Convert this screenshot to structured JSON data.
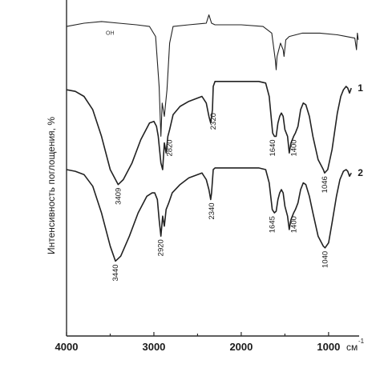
{
  "chart_data": {
    "type": "line",
    "xlabel": "см-1",
    "ylabel": "Интенсивность поглощения, %",
    "xlim": [
      4000,
      650
    ],
    "x_reversed": true,
    "xticks": [
      4000,
      3000,
      2000,
      1000
    ],
    "xtick_labels": [
      "4000",
      "3000",
      "2000",
      "1000"
    ],
    "xunit_main": "см",
    "xunit_sup": "-1",
    "grid": false,
    "series": [
      {
        "id": "ref",
        "label": "OH",
        "peaks": [
          2920,
          2850,
          1600,
          1510
        ],
        "points": [
          [
            4000,
            0.93
          ],
          [
            3800,
            0.94
          ],
          [
            3600,
            0.945
          ],
          [
            3400,
            0.94
          ],
          [
            3200,
            0.935
          ],
          [
            3050,
            0.93
          ],
          [
            2980,
            0.9
          ],
          [
            2940,
            0.75
          ],
          [
            2920,
            0.6
          ],
          [
            2905,
            0.7
          ],
          [
            2880,
            0.66
          ],
          [
            2850,
            0.74
          ],
          [
            2820,
            0.88
          ],
          [
            2780,
            0.93
          ],
          [
            2600,
            0.935
          ],
          [
            2400,
            0.94
          ],
          [
            2370,
            0.965
          ],
          [
            2340,
            0.94
          ],
          [
            2300,
            0.935
          ],
          [
            2000,
            0.935
          ],
          [
            1750,
            0.93
          ],
          [
            1650,
            0.91
          ],
          [
            1610,
            0.83
          ],
          [
            1600,
            0.8
          ],
          [
            1590,
            0.84
          ],
          [
            1550,
            0.88
          ],
          [
            1520,
            0.86
          ],
          [
            1510,
            0.84
          ],
          [
            1490,
            0.89
          ],
          [
            1450,
            0.9
          ],
          [
            1300,
            0.91
          ],
          [
            1100,
            0.91
          ],
          [
            900,
            0.905
          ],
          [
            800,
            0.9
          ],
          [
            700,
            0.895
          ],
          [
            680,
            0.86
          ],
          [
            670,
            0.91
          ],
          [
            660,
            0.89
          ]
        ]
      },
      {
        "id": "s1",
        "label": "1",
        "peaks": [
          3409,
          2820,
          2320,
          1640,
          1400,
          1046
        ],
        "peak_labels": [
          "3409",
          "2820",
          "2320",
          "1640",
          "1400",
          "1046"
        ],
        "points": [
          [
            4000,
            0.74
          ],
          [
            3900,
            0.735
          ],
          [
            3800,
            0.72
          ],
          [
            3700,
            0.68
          ],
          [
            3600,
            0.6
          ],
          [
            3500,
            0.5
          ],
          [
            3409,
            0.455
          ],
          [
            3350,
            0.47
          ],
          [
            3250,
            0.52
          ],
          [
            3150,
            0.59
          ],
          [
            3050,
            0.64
          ],
          [
            3000,
            0.645
          ],
          [
            2970,
            0.63
          ],
          [
            2950,
            0.6
          ],
          [
            2920,
            0.52
          ],
          [
            2900,
            0.5
          ],
          [
            2880,
            0.58
          ],
          [
            2860,
            0.55
          ],
          [
            2840,
            0.6
          ],
          [
            2820,
            0.62
          ],
          [
            2780,
            0.665
          ],
          [
            2700,
            0.69
          ],
          [
            2600,
            0.705
          ],
          [
            2450,
            0.72
          ],
          [
            2400,
            0.7
          ],
          [
            2370,
            0.66
          ],
          [
            2350,
            0.64
          ],
          [
            2330,
            0.68
          ],
          [
            2320,
            0.75
          ],
          [
            2300,
            0.765
          ],
          [
            2200,
            0.765
          ],
          [
            2000,
            0.765
          ],
          [
            1800,
            0.765
          ],
          [
            1720,
            0.76
          ],
          [
            1680,
            0.72
          ],
          [
            1640,
            0.61
          ],
          [
            1620,
            0.6
          ],
          [
            1600,
            0.6
          ],
          [
            1580,
            0.64
          ],
          [
            1560,
            0.66
          ],
          [
            1540,
            0.67
          ],
          [
            1520,
            0.66
          ],
          [
            1500,
            0.62
          ],
          [
            1470,
            0.6
          ],
          [
            1450,
            0.55
          ],
          [
            1430,
            0.58
          ],
          [
            1400,
            0.6
          ],
          [
            1380,
            0.61
          ],
          [
            1350,
            0.63
          ],
          [
            1320,
            0.68
          ],
          [
            1290,
            0.7
          ],
          [
            1260,
            0.695
          ],
          [
            1220,
            0.66
          ],
          [
            1180,
            0.6
          ],
          [
            1120,
            0.53
          ],
          [
            1060,
            0.5
          ],
          [
            1046,
            0.49
          ],
          [
            1010,
            0.5
          ],
          [
            960,
            0.56
          ],
          [
            900,
            0.67
          ],
          [
            860,
            0.72
          ],
          [
            830,
            0.74
          ],
          [
            800,
            0.75
          ],
          [
            780,
            0.745
          ],
          [
            760,
            0.73
          ],
          [
            740,
            0.745
          ]
        ]
      },
      {
        "id": "s2",
        "label": "2",
        "peaks": [
          3440,
          2920,
          2340,
          1645,
          1400,
          1040
        ],
        "peak_labels": [
          "3440",
          "2920",
          "2340",
          "1645",
          "1400",
          "1040"
        ],
        "points": [
          [
            4000,
            0.5
          ],
          [
            3900,
            0.495
          ],
          [
            3800,
            0.485
          ],
          [
            3700,
            0.45
          ],
          [
            3600,
            0.37
          ],
          [
            3500,
            0.27
          ],
          [
            3440,
            0.225
          ],
          [
            3380,
            0.24
          ],
          [
            3280,
            0.3
          ],
          [
            3180,
            0.37
          ],
          [
            3080,
            0.42
          ],
          [
            3020,
            0.43
          ],
          [
            2990,
            0.43
          ],
          [
            2960,
            0.41
          ],
          [
            2940,
            0.35
          ],
          [
            2920,
            0.3
          ],
          [
            2900,
            0.36
          ],
          [
            2880,
            0.33
          ],
          [
            2860,
            0.38
          ],
          [
            2830,
            0.4
          ],
          [
            2790,
            0.43
          ],
          [
            2700,
            0.455
          ],
          [
            2600,
            0.475
          ],
          [
            2450,
            0.49
          ],
          [
            2400,
            0.47
          ],
          [
            2370,
            0.44
          ],
          [
            2350,
            0.41
          ],
          [
            2340,
            0.43
          ],
          [
            2320,
            0.5
          ],
          [
            2300,
            0.505
          ],
          [
            2200,
            0.505
          ],
          [
            2000,
            0.505
          ],
          [
            1800,
            0.505
          ],
          [
            1720,
            0.5
          ],
          [
            1680,
            0.46
          ],
          [
            1645,
            0.38
          ],
          [
            1620,
            0.37
          ],
          [
            1600,
            0.375
          ],
          [
            1580,
            0.41
          ],
          [
            1560,
            0.43
          ],
          [
            1540,
            0.44
          ],
          [
            1520,
            0.43
          ],
          [
            1500,
            0.39
          ],
          [
            1470,
            0.36
          ],
          [
            1450,
            0.32
          ],
          [
            1430,
            0.35
          ],
          [
            1400,
            0.37
          ],
          [
            1380,
            0.38
          ],
          [
            1350,
            0.4
          ],
          [
            1320,
            0.44
          ],
          [
            1290,
            0.46
          ],
          [
            1260,
            0.455
          ],
          [
            1220,
            0.42
          ],
          [
            1180,
            0.37
          ],
          [
            1120,
            0.3
          ],
          [
            1060,
            0.27
          ],
          [
            1040,
            0.265
          ],
          [
            1000,
            0.28
          ],
          [
            960,
            0.34
          ],
          [
            910,
            0.42
          ],
          [
            870,
            0.47
          ],
          [
            830,
            0.495
          ],
          [
            800,
            0.5
          ],
          [
            780,
            0.495
          ],
          [
            760,
            0.48
          ],
          [
            740,
            0.49
          ]
        ]
      }
    ]
  }
}
